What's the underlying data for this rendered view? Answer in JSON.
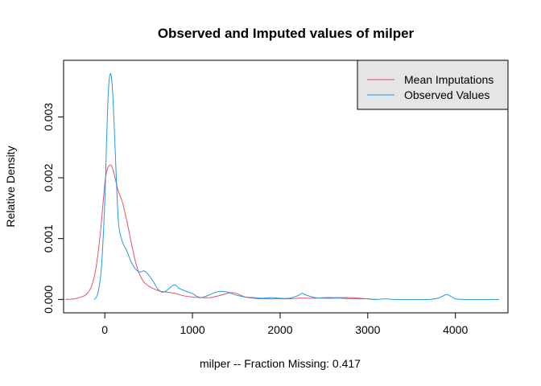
{
  "chart_data": {
    "type": "line",
    "title": "Observed and Imputed values of milper",
    "xlabel": "milper   --  Fraction Missing: 0.417",
    "ylabel": "Relative Density",
    "xlim": [
      -470,
      4600
    ],
    "ylim": [
      -0.00022,
      0.00393
    ],
    "x_ticks": [
      0,
      1000,
      2000,
      3000,
      4000
    ],
    "x_tick_labels": [
      "0",
      "1000",
      "2000",
      "3000",
      "4000"
    ],
    "y_ticks": [
      0,
      0.001,
      0.002,
      0.003
    ],
    "y_tick_labels": [
      "0.000",
      "0.001",
      "0.002",
      "0.003"
    ],
    "grid": false,
    "legend_position": "top-right",
    "series": [
      {
        "name": "Mean Imputations",
        "color": "#df536b",
        "x": [
          -450,
          -350,
          -250,
          -200,
          -150,
          -100,
          -50,
          0,
          25,
          50,
          75,
          100,
          125,
          150,
          200,
          250,
          300,
          350,
          400,
          450,
          500,
          550,
          600,
          650,
          700,
          800,
          900,
          1000,
          1100,
          1200,
          1300,
          1400,
          1450,
          1500,
          1600,
          1700,
          1800,
          1900,
          2000,
          2100,
          2200,
          2300,
          2400,
          2500,
          2600,
          2700,
          2800,
          2900,
          3000,
          3050,
          3100
        ],
        "values": [
          0.0,
          1e-05,
          5e-05,
          0.0001,
          0.00022,
          0.00052,
          0.0011,
          0.0019,
          0.00212,
          0.0022,
          0.0022,
          0.0021,
          0.00195,
          0.0018,
          0.0016,
          0.0013,
          0.00095,
          0.00062,
          0.0004,
          0.00028,
          0.00022,
          0.00018,
          0.00015,
          0.00013,
          0.00012,
          0.0001,
          6e-05,
          4e-05,
          3e-05,
          3e-05,
          6e-05,
          0.0001,
          0.00011,
          0.0001,
          4e-05,
          2e-05,
          1e-05,
          1e-05,
          1e-05,
          1e-05,
          2e-05,
          2e-05,
          2e-05,
          3e-05,
          3e-05,
          3e-05,
          3e-05,
          2e-05,
          1e-05,
          0.0,
          0.0
        ]
      },
      {
        "name": "Observed Values",
        "color": "#2297e6",
        "x": [
          -120,
          -80,
          -40,
          0,
          20,
          40,
          60,
          80,
          100,
          120,
          140,
          160,
          200,
          250,
          300,
          350,
          400,
          450,
          500,
          550,
          600,
          650,
          700,
          750,
          800,
          850,
          900,
          950,
          1000,
          1050,
          1100,
          1150,
          1200,
          1300,
          1400,
          1500,
          1600,
          1700,
          1800,
          1900,
          2000,
          2100,
          2200,
          2250,
          2300,
          2400,
          2500,
          2600,
          2700,
          2800,
          2900,
          3000,
          3100,
          3200,
          3300,
          3400,
          3500,
          3600,
          3700,
          3800,
          3850,
          3900,
          3950,
          4000,
          4100,
          4200,
          4300,
          4400,
          4500
        ],
        "values": [
          0.0,
          0.0001,
          0.0005,
          0.0016,
          0.0026,
          0.0034,
          0.0037,
          0.0036,
          0.0031,
          0.0024,
          0.0017,
          0.0012,
          0.00095,
          0.0008,
          0.00062,
          0.0005,
          0.00045,
          0.00047,
          0.0004,
          0.0003,
          0.00018,
          0.00012,
          0.00014,
          0.0002,
          0.00024,
          0.00018,
          0.00015,
          0.00012,
          0.0001,
          5e-05,
          3e-05,
          5e-05,
          8e-05,
          0.00013,
          0.00012,
          7e-05,
          4e-05,
          3e-05,
          2e-05,
          3e-05,
          2e-05,
          2e-05,
          6e-05,
          0.0001,
          7e-05,
          3e-05,
          2e-05,
          2e-05,
          2e-05,
          1e-05,
          1e-05,
          1e-05,
          0.0,
          1e-05,
          0.0,
          0.0,
          0.0,
          0.0,
          0.0,
          2e-05,
          5e-05,
          8e-05,
          5e-05,
          1e-05,
          0.0,
          0.0,
          0.0,
          0.0,
          0.0
        ]
      }
    ]
  }
}
